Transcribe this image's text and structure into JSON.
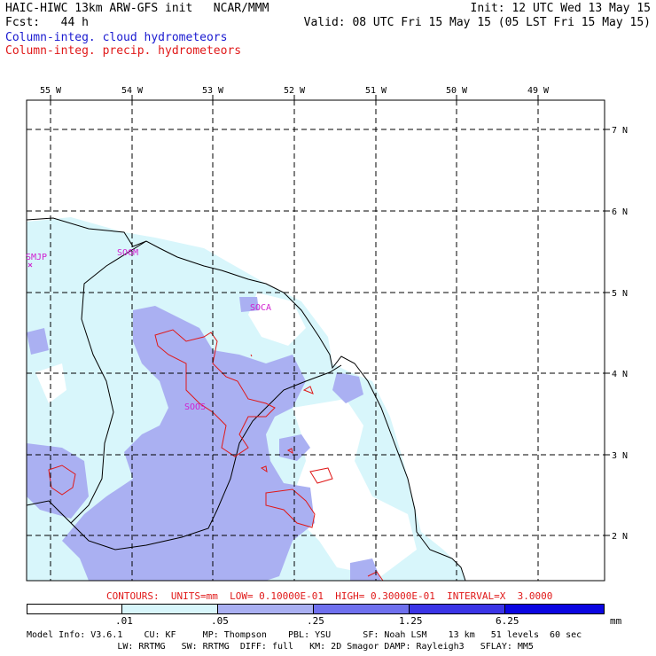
{
  "header": {
    "left_line1": "HAIC-HIWC 13km ARW-GFS init   NCAR/MMM",
    "left_line2": "Fcst:   44 h",
    "right_line1": "Init: 12 UTC Wed 13 May 15",
    "right_line2": "Valid: 08 UTC Fri 15 May 15 (05 LST Fri 15 May 15)",
    "legend_cloud": "Column-integ. cloud hydrometeors",
    "legend_precip": "Column-integ. precip. hydrometeors"
  },
  "map": {
    "lon_labels": [
      "55 W",
      "54 W",
      "53 W",
      "52 W",
      "51 W",
      "50 W",
      "49 W"
    ],
    "lat_labels": [
      "7 N",
      "6 N",
      "5 N",
      "4 N",
      "3 N",
      "2 N"
    ],
    "stations": [
      "SMJP",
      "SOCM",
      "SOCA",
      "SOOS"
    ]
  },
  "contour_info": "CONTOURS:  UNITS=mm  LOW= 0.10000E-01  HIGH= 0.30000E-01  INTERVAL=X  3.0000",
  "colorbar": {
    "tick_labels": [
      ".01",
      ".05",
      ".25",
      "1.25",
      "6.25"
    ],
    "units": "mm",
    "colors": [
      "#ffffff",
      "#d8f6fb",
      "#aab0f2",
      "#6f70ee",
      "#3b34e6",
      "#0b06e1"
    ]
  },
  "model_info": {
    "line1": "Model Info: V3.6.1    CU: KF     MP: Thompson    PBL: YSU      SF: Noah LSM    13 km   51 levels  60 sec",
    "line2": "                 LW: RRTMG   SW: RRTMG  DIFF: full   KM: 2D Smagor DAMP: Rayleigh3   SFLAY: MM5"
  }
}
